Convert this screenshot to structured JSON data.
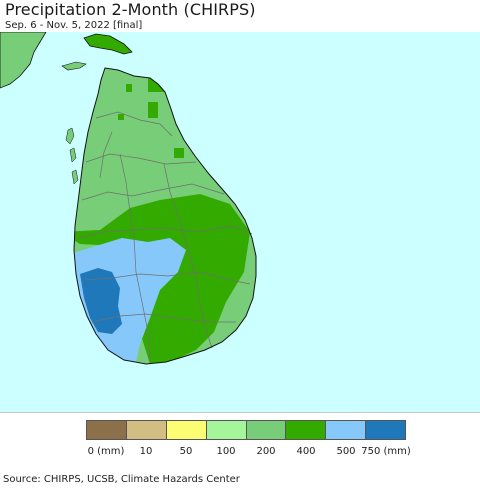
{
  "title": "Precipitation 2-Month (CHIRPS)",
  "subtitle": "Sep. 6 - Nov. 5, 2022 [final]",
  "source": "Source: CHIRPS, UCSB, Climate Hazards Center",
  "legend": {
    "bins": [
      {
        "color": "#8b7049"
      },
      {
        "color": "#d2bd83"
      },
      {
        "color": "#fdfd74"
      },
      {
        "color": "#a5f59b"
      },
      {
        "color": "#78cd78"
      },
      {
        "color": "#33aa00"
      },
      {
        "color": "#86c8fa"
      },
      {
        "color": "#1f78b9"
      }
    ],
    "labels": [
      "0 (mm)",
      "10",
      "50",
      "100",
      "200",
      "400",
      "500",
      "750 (mm)"
    ]
  },
  "map": {
    "colors": {
      "ocean": "#ccffff",
      "land_base": "#78cd78",
      "land_wet": "#33aa00",
      "land_light_blue": "#86c8fa",
      "land_dark_blue": "#1f78b9",
      "mainland_india": "#78cd78",
      "boundary": "#6f6f6f",
      "coastline": "#111111"
    }
  }
}
